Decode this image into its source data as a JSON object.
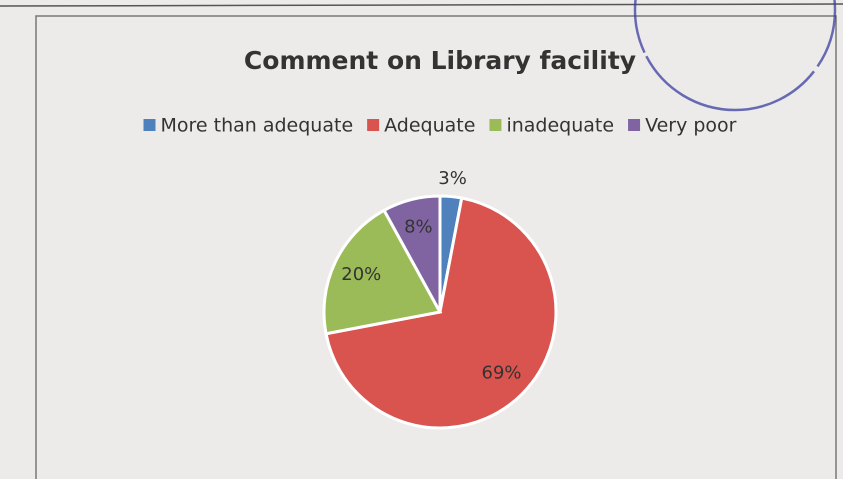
{
  "chart_data": {
    "type": "pie",
    "title": "Comment on Library facility",
    "categories": [
      "More  than adequate",
      "Adequate",
      "inadequate",
      "Very poor"
    ],
    "values": [
      3,
      69,
      20,
      8
    ],
    "value_labels": [
      "3%",
      "69%",
      "20%",
      "8%"
    ],
    "colors": [
      "#4f81bd",
      "#d9534f",
      "#9bbb59",
      "#8064a2"
    ],
    "legend": "top"
  }
}
